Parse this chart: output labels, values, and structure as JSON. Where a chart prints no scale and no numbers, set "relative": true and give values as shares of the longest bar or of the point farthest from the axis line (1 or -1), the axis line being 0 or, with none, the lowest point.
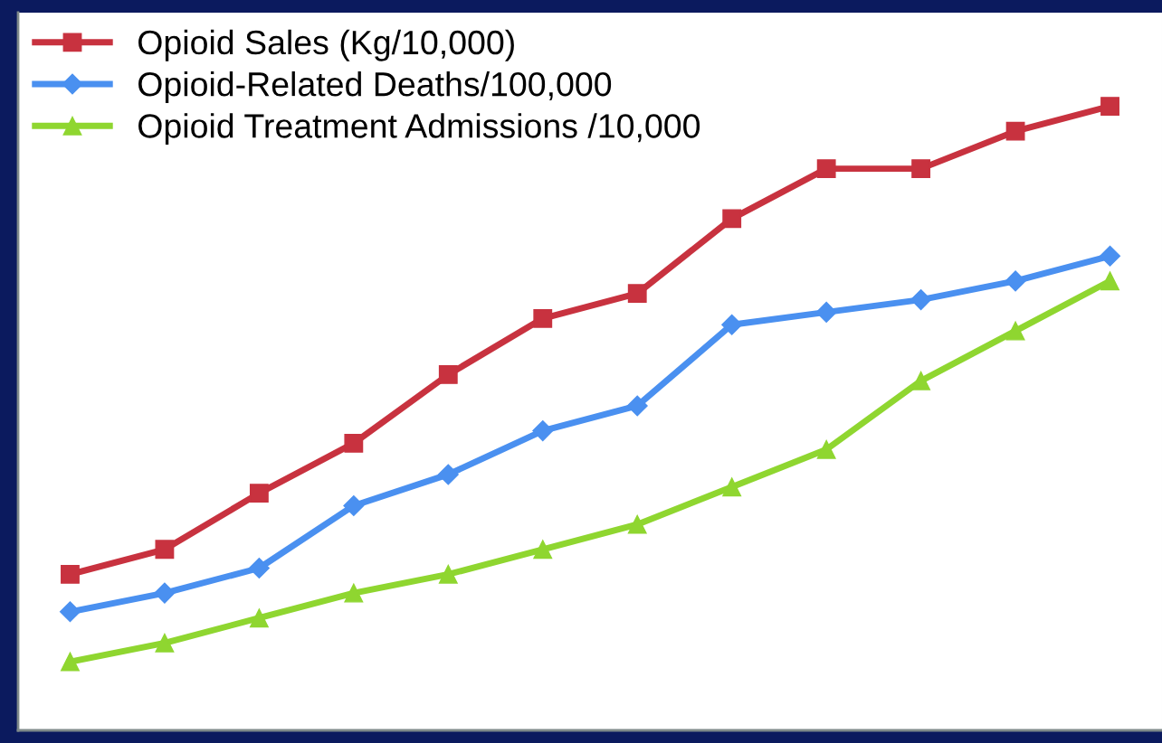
{
  "chart_data": {
    "type": "line",
    "relative": true,
    "categories": [
      null,
      null,
      null,
      null,
      null,
      null,
      null,
      null,
      null,
      null,
      null,
      null
    ],
    "series": [
      {
        "name": "Opioid Sales (Kg/10,000)",
        "color": "#c8323f",
        "marker": "square",
        "values": [
          0.25,
          0.29,
          0.38,
          0.46,
          0.57,
          0.66,
          0.7,
          0.82,
          0.9,
          0.9,
          0.96,
          1
        ]
      },
      {
        "name": "Opioid-Related Deaths/100,000",
        "color": "#4a90f0",
        "marker": "diamond",
        "values": [
          0.19,
          0.22,
          0.26,
          0.36,
          0.41,
          0.48,
          0.52,
          0.65,
          0.67,
          0.69,
          0.72,
          0.76
        ]
      },
      {
        "name": "Opioid Treatment Admissions /10,000",
        "color": "#8fd630",
        "marker": "triangle",
        "values": [
          0.11,
          0.14,
          0.18,
          0.22,
          0.25,
          0.29,
          0.33,
          0.39,
          0.45,
          0.56,
          0.64,
          0.72
        ]
      }
    ],
    "legend": "top left",
    "grid": false,
    "line_style": "solid"
  }
}
